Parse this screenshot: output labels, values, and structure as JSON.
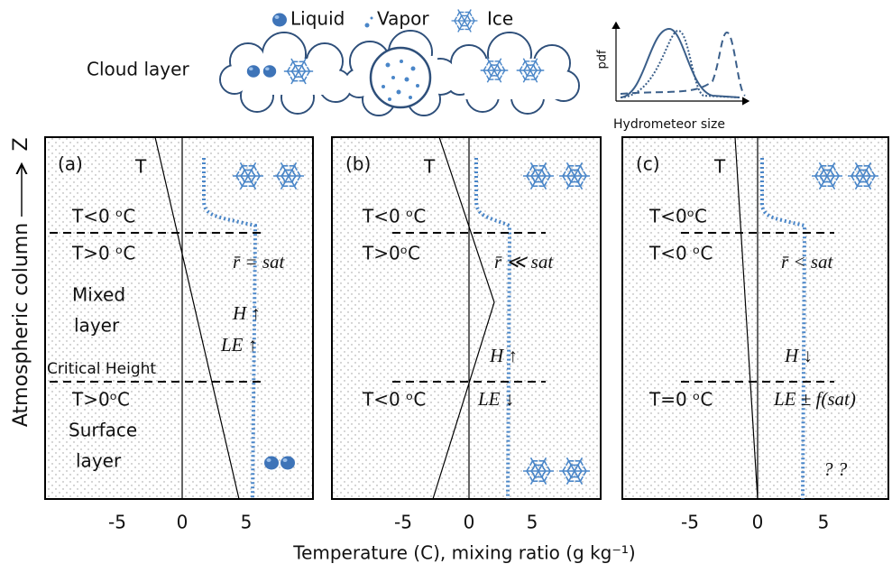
{
  "legend": {
    "liquid": "Liquid",
    "vapor": "Vapor",
    "ice": "Ice"
  },
  "cloud_label": "Cloud layer",
  "inset": {
    "y_label": "pdf",
    "x_label": "Hydrometeor size"
  },
  "axis": {
    "y_label": "Atmospheric  column",
    "z_label": "Z",
    "x_label": "Temperature (C),  mixing ratio (g kg⁻¹)",
    "x_ticks": [
      "-5",
      "0",
      "5"
    ]
  },
  "panels": [
    {
      "label": "(a)",
      "t_label": "T",
      "upper": "T<0 ᵒC",
      "lower": "T>0 ᵒC",
      "ratio": "r̄ = sat",
      "mixed_layer": [
        "Mixed",
        "layer"
      ],
      "h": "H ↑",
      "le": "LE ↑",
      "critical": "Critical Height",
      "bottom": "T>0ᵒC",
      "surface_layer": [
        "Surface",
        "layer"
      ]
    },
    {
      "label": "(b)",
      "t_label": "T",
      "upper": "T<0 ᵒC",
      "lower": "T>0ᵒC",
      "ratio": "r̄ ≪ sat",
      "h": "H ↑",
      "bottom": "T<0 ᵒC",
      "le": "LE ↓"
    },
    {
      "label": "(c)",
      "t_label": "T",
      "upper": "T<0ᵒC",
      "lower": "T<0 ᵒC",
      "ratio": "r̄ < sat",
      "h": "H ↓",
      "bottom": "T=0 ᵒC",
      "le": "LE ± f(sat)",
      "unknown": "? ?"
    }
  ]
}
